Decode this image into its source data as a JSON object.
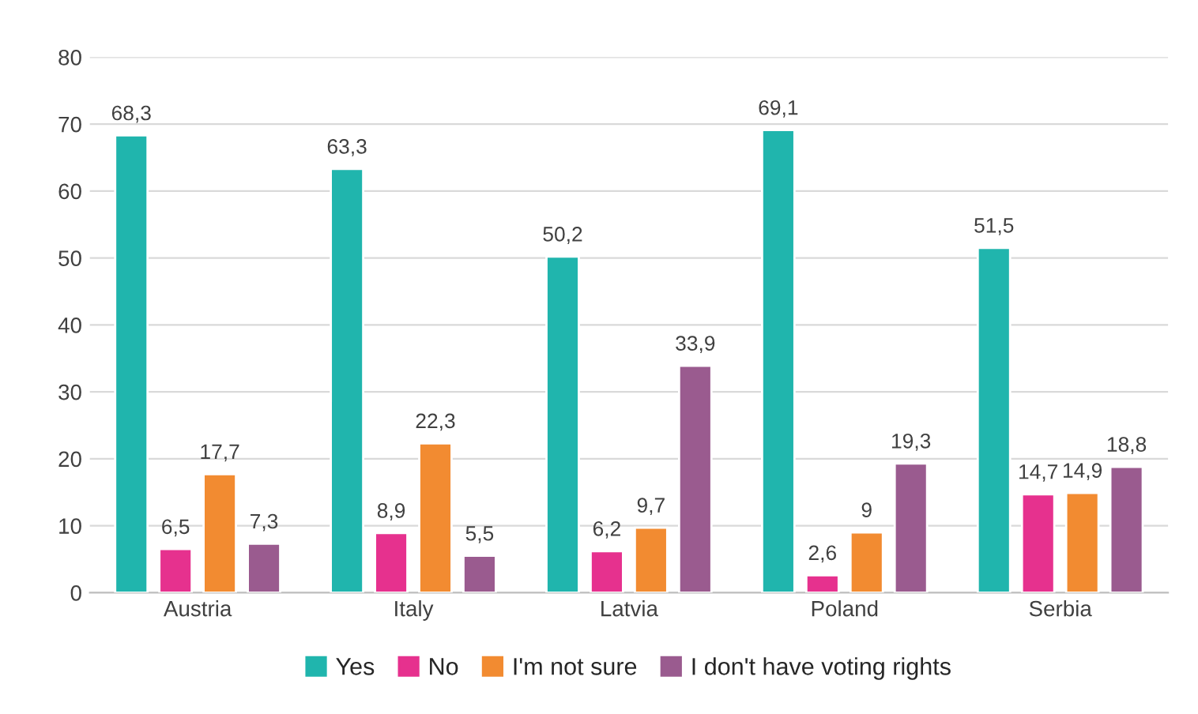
{
  "chart_data": {
    "type": "bar",
    "categories": [
      "Austria",
      "Italy",
      "Latvia",
      "Poland",
      "Serbia"
    ],
    "series": [
      {
        "name": "Yes",
        "color": "#20b5ad",
        "values": [
          68.3,
          63.3,
          50.2,
          69.1,
          51.5
        ],
        "value_labels": [
          "68,3",
          "63,3",
          "50,2",
          "69,1",
          "51,5"
        ]
      },
      {
        "name": "No",
        "color": "#e6318e",
        "values": [
          6.5,
          8.9,
          6.2,
          2.6,
          14.7
        ],
        "value_labels": [
          "6,5",
          "8,9",
          "6,2",
          "2,6",
          "14,7"
        ]
      },
      {
        "name": "I'm not sure",
        "color": "#f28b31",
        "values": [
          17.7,
          22.3,
          9.7,
          9,
          14.9
        ],
        "value_labels": [
          "17,7",
          "22,3",
          "9,7",
          "9",
          "14,9"
        ]
      },
      {
        "name": "I don't have voting rights",
        "color": "#9a5b8f",
        "values": [
          7.3,
          5.5,
          33.9,
          19.3,
          18.8
        ],
        "value_labels": [
          "7,3",
          "5,5",
          "33,9",
          "19,3",
          "18,8"
        ]
      }
    ],
    "ylim": [
      0,
      80
    ],
    "yticks": [
      0,
      10,
      20,
      30,
      40,
      50,
      60,
      70,
      80
    ],
    "grid": "y",
    "legend": "bottom"
  }
}
